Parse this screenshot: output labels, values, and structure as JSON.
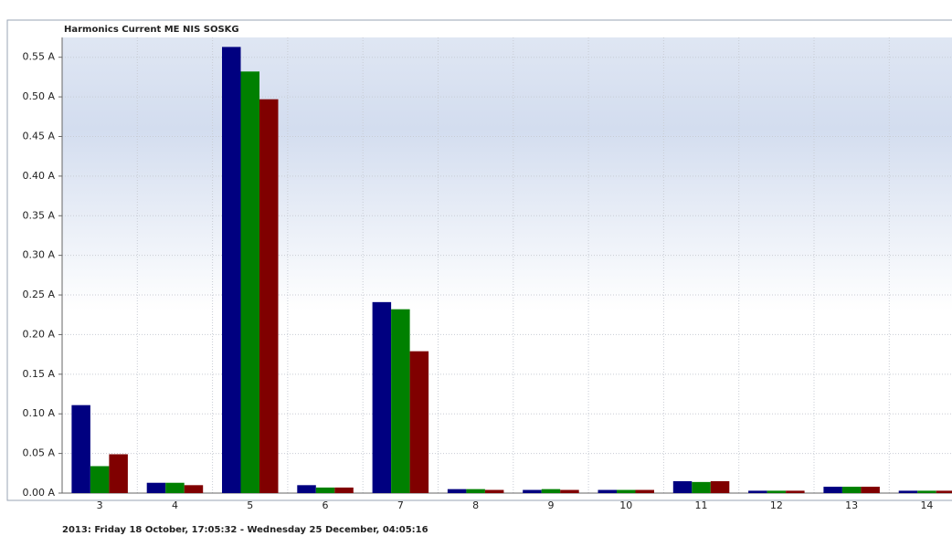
{
  "chart_data": {
    "type": "bar",
    "title": "Harmonics Current ME NIS SOSKG",
    "subtitle": "2013: Friday 18 October, 17:05:32 - Wednesday 25 December, 04:05:16",
    "categories": [
      "3",
      "4",
      "5",
      "6",
      "7",
      "8",
      "9",
      "10",
      "11",
      "12",
      "13",
      "14"
    ],
    "series": [
      {
        "color": "#000080",
        "values": [
          0.111,
          0.013,
          0.563,
          0.01,
          0.241,
          0.005,
          0.004,
          0.004,
          0.015,
          0.003,
          0.008,
          0.003
        ]
      },
      {
        "color": "#008000",
        "values": [
          0.034,
          0.013,
          0.532,
          0.007,
          0.232,
          0.005,
          0.005,
          0.004,
          0.014,
          0.003,
          0.008,
          0.003
        ]
      },
      {
        "color": "#800000",
        "values": [
          0.049,
          0.01,
          0.497,
          0.007,
          0.179,
          0.004,
          0.004,
          0.004,
          0.015,
          0.003,
          0.008,
          0.003
        ]
      }
    ],
    "ylim": [
      0,
      0.575
    ],
    "yticks": [
      {
        "value": 0,
        "label": "0.00 A"
      },
      {
        "value": 0.05,
        "label": "0.05 A"
      },
      {
        "value": 0.1,
        "label": "0.10 A"
      },
      {
        "value": 0.15,
        "label": "0.15 A"
      },
      {
        "value": 0.2,
        "label": "0.20 A"
      },
      {
        "value": 0.25,
        "label": "0.25 A"
      },
      {
        "value": 0.3,
        "label": "0.30 A"
      },
      {
        "value": 0.35,
        "label": "0.35 A"
      },
      {
        "value": 0.4,
        "label": "0.40 A"
      },
      {
        "value": 0.45,
        "label": "0.45 A"
      },
      {
        "value": 0.5,
        "label": "0.50 A"
      },
      {
        "value": 0.55,
        "label": "0.55 A"
      }
    ],
    "grid": true
  }
}
